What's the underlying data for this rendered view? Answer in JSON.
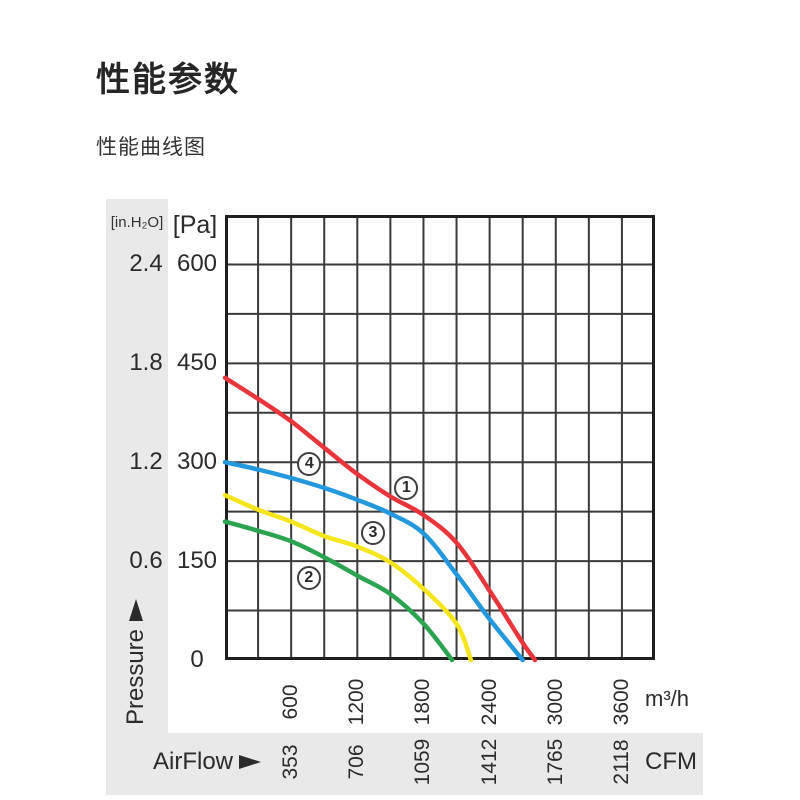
{
  "header": {
    "title": "性能参数",
    "subtitle": "性能曲线图"
  },
  "chart_data": {
    "type": "line",
    "title": "性能曲线图",
    "grid": {
      "on": true,
      "x_step_m3h": 300,
      "y_step_pa": 75
    },
    "x_axis": {
      "name": "AirFlow",
      "unit_top": "m³/h",
      "unit_bottom": "CFM",
      "range_m3h": [
        0,
        3900
      ],
      "ticks": [
        {
          "m3h": "600",
          "cfm": "353"
        },
        {
          "m3h": "1200",
          "cfm": "706"
        },
        {
          "m3h": "1800",
          "cfm": "1059"
        },
        {
          "m3h": "2400",
          "cfm": "1412"
        },
        {
          "m3h": "3000",
          "cfm": "1765"
        },
        {
          "m3h": "3600",
          "cfm": "2118"
        }
      ]
    },
    "y_axis": {
      "name": "Pressure",
      "unit_left": "[in.H₂O]",
      "unit_right": "[Pa]",
      "range_pa": [
        0,
        675
      ],
      "ticks": [
        {
          "pa": "600",
          "inh2o": "2.4"
        },
        {
          "pa": "450",
          "inh2o": "1.8"
        },
        {
          "pa": "300",
          "inh2o": "1.2"
        },
        {
          "pa": "150",
          "inh2o": "0.6"
        },
        {
          "pa": "0",
          "inh2o": ""
        }
      ]
    },
    "series": [
      {
        "name": "curve 1",
        "marker_label": "1",
        "color": "#e8353c",
        "marker_at": {
          "m3h": 1645,
          "pa": 261
        },
        "points_m3h_pa": [
          [
            0,
            428
          ],
          [
            300,
            396
          ],
          [
            600,
            362
          ],
          [
            900,
            322
          ],
          [
            1200,
            282
          ],
          [
            1500,
            248
          ],
          [
            1800,
            220
          ],
          [
            2100,
            178
          ],
          [
            2400,
            105
          ],
          [
            2700,
            26
          ],
          [
            2812,
            0
          ]
        ]
      },
      {
        "name": "curve 2",
        "marker_label": "2",
        "color": "#2ba351",
        "marker_at": {
          "m3h": 760,
          "pa": 125
        },
        "points_m3h_pa": [
          [
            0,
            210
          ],
          [
            300,
            196
          ],
          [
            600,
            180
          ],
          [
            900,
            156
          ],
          [
            1200,
            128
          ],
          [
            1500,
            100
          ],
          [
            1800,
            55
          ],
          [
            2060,
            0
          ]
        ]
      },
      {
        "name": "curve 3",
        "marker_label": "3",
        "color": "#f5e51c",
        "marker_at": {
          "m3h": 1342,
          "pa": 192
        },
        "points_m3h_pa": [
          [
            0,
            250
          ],
          [
            300,
            228
          ],
          [
            600,
            210
          ],
          [
            900,
            188
          ],
          [
            1200,
            172
          ],
          [
            1500,
            148
          ],
          [
            1800,
            108
          ],
          [
            2100,
            55
          ],
          [
            2230,
            0
          ]
        ]
      },
      {
        "name": "curve 4",
        "marker_label": "4",
        "color": "#2398dd",
        "marker_at": {
          "m3h": 765,
          "pa": 298
        },
        "points_m3h_pa": [
          [
            0,
            300
          ],
          [
            300,
            289
          ],
          [
            600,
            276
          ],
          [
            900,
            261
          ],
          [
            1200,
            243
          ],
          [
            1500,
            222
          ],
          [
            1800,
            192
          ],
          [
            2100,
            130
          ],
          [
            2400,
            62
          ],
          [
            2700,
            0
          ]
        ]
      }
    ],
    "colors": {
      "grid_line": "#3a3a3a",
      "plot_border": "#1f1f1f",
      "axis_band": "#e9e9e9",
      "text": "#2b2b2b"
    }
  }
}
